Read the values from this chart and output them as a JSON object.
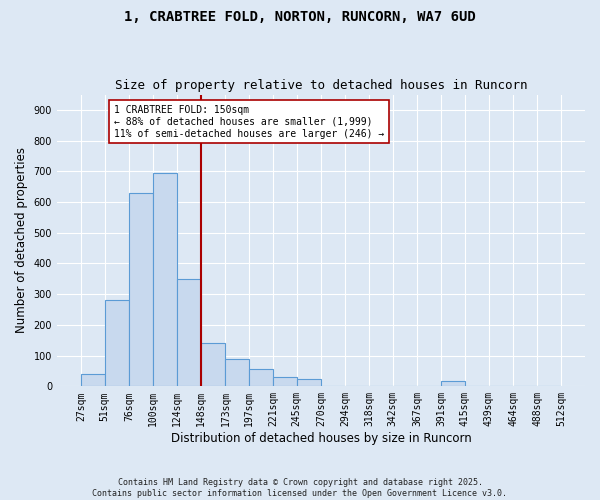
{
  "title_line1": "1, CRABTREE FOLD, NORTON, RUNCORN, WA7 6UD",
  "title_line2": "Size of property relative to detached houses in Runcorn",
  "xlabel": "Distribution of detached houses by size in Runcorn",
  "ylabel": "Number of detached properties",
  "footer": "Contains HM Land Registry data © Crown copyright and database right 2025.\nContains public sector information licensed under the Open Government Licence v3.0.",
  "bar_edges": [
    27,
    51,
    76,
    100,
    124,
    148,
    173,
    197,
    221,
    245,
    270,
    294,
    318,
    342,
    367,
    391,
    415,
    439,
    464,
    488,
    512
  ],
  "bar_heights": [
    40,
    280,
    630,
    695,
    350,
    140,
    90,
    55,
    30,
    25,
    0,
    0,
    0,
    0,
    0,
    17,
    0,
    0,
    0,
    0
  ],
  "bar_color": "#c8d9ee",
  "bar_edge_color": "#5b9bd5",
  "vline_x": 148,
  "vline_color": "#aa0000",
  "annotation_text": "1 CRABTREE FOLD: 150sqm\n← 88% of detached houses are smaller (1,999)\n11% of semi-detached houses are larger (246) →",
  "annotation_box_color": "#ffffff",
  "annotation_box_edge_color": "#aa0000",
  "ylim": [
    0,
    950
  ],
  "yticks": [
    0,
    100,
    200,
    300,
    400,
    500,
    600,
    700,
    800,
    900
  ],
  "bg_color": "#dde8f4",
  "plot_bg_color": "#dde8f4",
  "grid_color": "#ffffff",
  "title_fontsize": 10,
  "subtitle_fontsize": 9,
  "tick_label_fontsize": 7,
  "axis_label_fontsize": 8.5,
  "annotation_fontsize": 7,
  "footer_fontsize": 6
}
